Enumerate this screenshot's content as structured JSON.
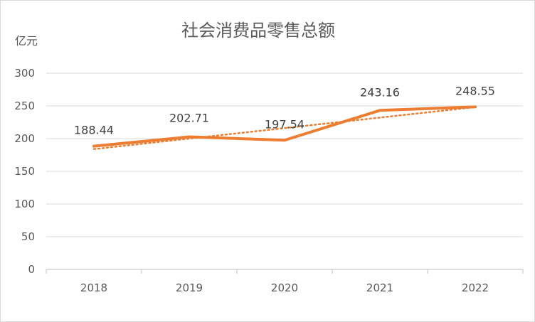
{
  "chart_data": {
    "type": "line",
    "title": "社会消费品零售总额",
    "ylabel": "亿元",
    "xlabel": "",
    "categories": [
      "2018",
      "2019",
      "2020",
      "2021",
      "2022"
    ],
    "series": [
      {
        "values": [
          188.44,
          202.71,
          197.54,
          243.16,
          248.55
        ],
        "color": "#ED7D31"
      }
    ],
    "trendline": {
      "type": "linear",
      "style": "dotted",
      "color": "#ED7D31"
    },
    "ylim": [
      0,
      300
    ],
    "yticks": [
      "0",
      "50",
      "100",
      "150",
      "200",
      "250",
      "300"
    ],
    "grid": true,
    "legend": "none"
  }
}
